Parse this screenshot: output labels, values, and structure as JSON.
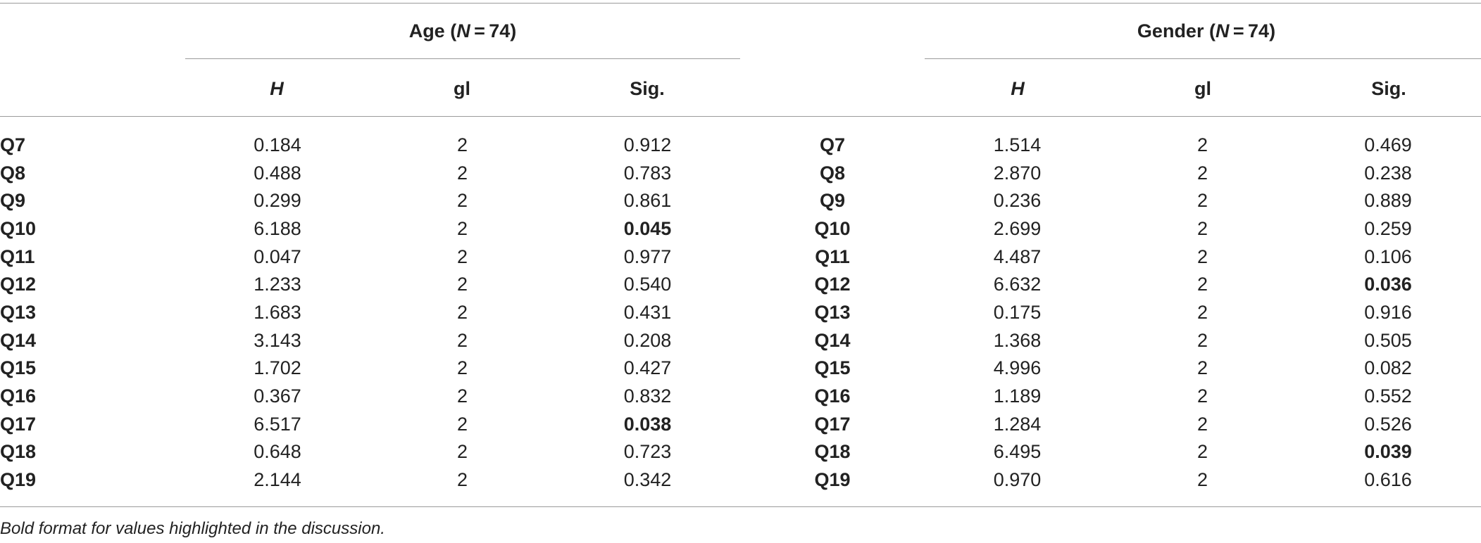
{
  "groups": {
    "age": {
      "title": "Age (",
      "n_symbol": "N",
      "n_value": " = 74)"
    },
    "gender": {
      "title": "Gender (",
      "n_symbol": "N",
      "n_value": " = 74)"
    }
  },
  "columns": {
    "h": "H",
    "gl": "gl",
    "sig": "Sig."
  },
  "rows": [
    {
      "q": "Q7",
      "age": [
        "0.184",
        "2",
        "0.912"
      ],
      "gender": [
        "1.514",
        "2",
        "0.469"
      ]
    },
    {
      "q": "Q8",
      "age": [
        "0.488",
        "2",
        "0.783"
      ],
      "gender": [
        "2.870",
        "2",
        "0.238"
      ]
    },
    {
      "q": "Q9",
      "age": [
        "0.299",
        "2",
        "0.861"
      ],
      "gender": [
        "0.236",
        "2",
        "0.889"
      ]
    },
    {
      "q": "Q10",
      "age": [
        "6.188",
        "2",
        "0.045"
      ],
      "gender": [
        "2.699",
        "2",
        "0.259"
      ],
      "age_sig_bold": true
    },
    {
      "q": "Q11",
      "age": [
        "0.047",
        "2",
        "0.977"
      ],
      "gender": [
        "4.487",
        "2",
        "0.106"
      ]
    },
    {
      "q": "Q12",
      "age": [
        "1.233",
        "2",
        "0.540"
      ],
      "gender": [
        "6.632",
        "2",
        "0.036"
      ],
      "gender_sig_bold": true
    },
    {
      "q": "Q13",
      "age": [
        "1.683",
        "2",
        "0.431"
      ],
      "gender": [
        "0.175",
        "2",
        "0.916"
      ]
    },
    {
      "q": "Q14",
      "age": [
        "3.143",
        "2",
        "0.208"
      ],
      "gender": [
        "1.368",
        "2",
        "0.505"
      ]
    },
    {
      "q": "Q15",
      "age": [
        "1.702",
        "2",
        "0.427"
      ],
      "gender": [
        "4.996",
        "2",
        "0.082"
      ]
    },
    {
      "q": "Q16",
      "age": [
        "0.367",
        "2",
        "0.832"
      ],
      "gender": [
        "1.189",
        "2",
        "0.552"
      ]
    },
    {
      "q": "Q17",
      "age": [
        "6.517",
        "2",
        "0.038"
      ],
      "gender": [
        "1.284",
        "2",
        "0.526"
      ],
      "age_sig_bold": true
    },
    {
      "q": "Q18",
      "age": [
        "0.648",
        "2",
        "0.723"
      ],
      "gender": [
        "6.495",
        "2",
        "0.039"
      ],
      "gender_sig_bold": true
    },
    {
      "q": "Q19",
      "age": [
        "2.144",
        "2",
        "0.342"
      ],
      "gender": [
        "0.970",
        "2",
        "0.616"
      ]
    }
  ],
  "footnote": "Bold format for values highlighted in the discussion."
}
